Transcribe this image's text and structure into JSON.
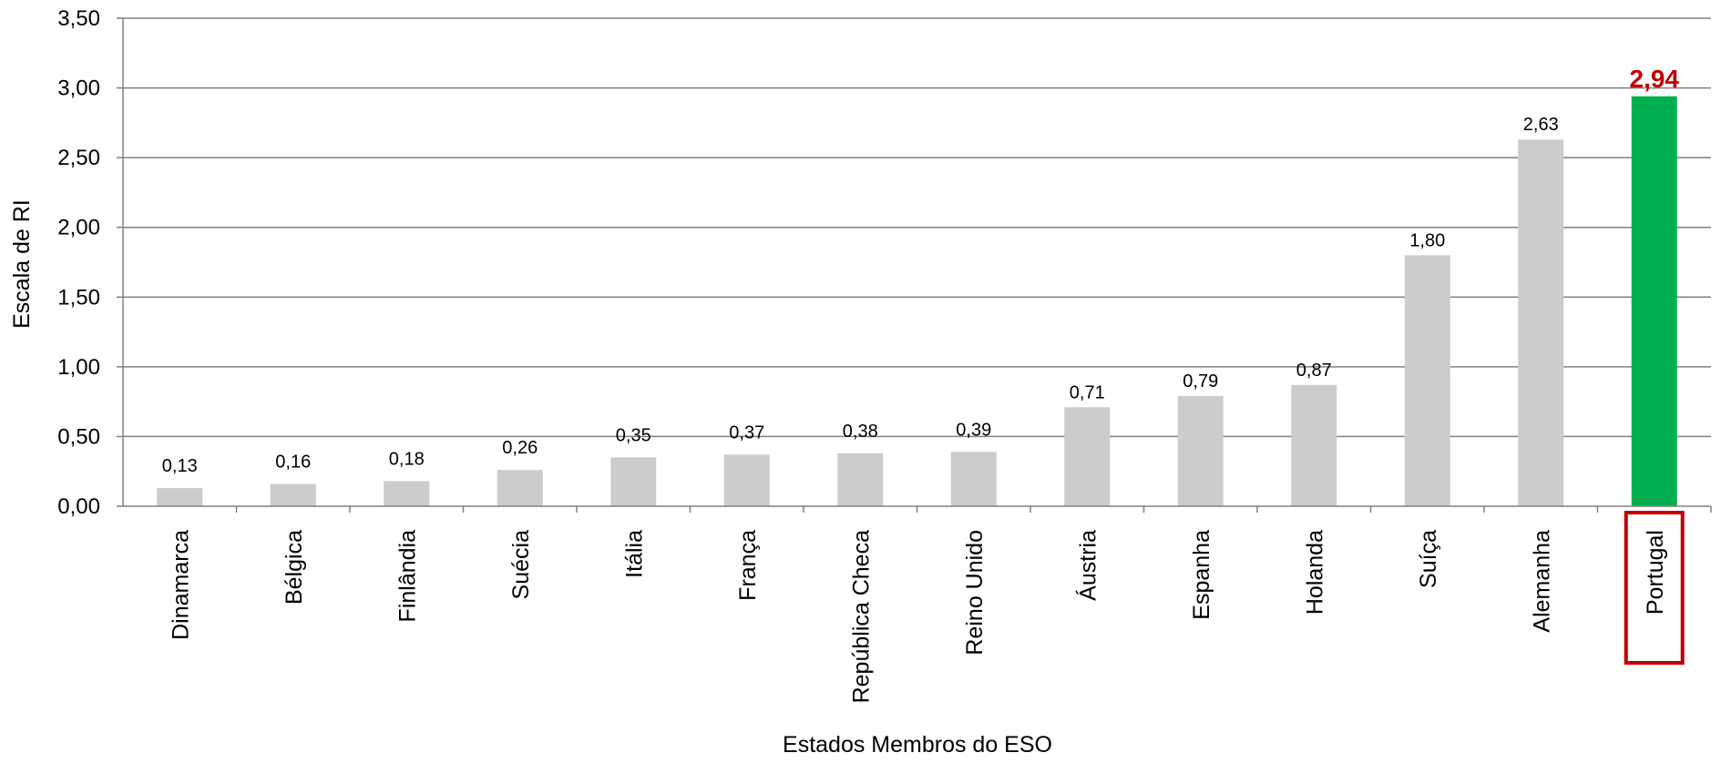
{
  "chart_data": {
    "type": "bar",
    "title": "",
    "xlabel": "Estados Membros do ESO",
    "ylabel": "Escala de RI",
    "ylim": [
      0,
      3.5
    ],
    "yticks": [
      "0,00",
      "0,50",
      "1,00",
      "1,50",
      "2,00",
      "2,50",
      "3,00",
      "3,50"
    ],
    "grid": true,
    "categories": [
      "Dinamarca",
      "Bélgica",
      "Finlândia",
      "Suécia",
      "Itália",
      "França",
      "República Checa",
      "Reino Unido",
      "Áustria",
      "Espanha",
      "Holanda",
      "Suíça",
      "Alemanha",
      "Portugal"
    ],
    "values": [
      0.13,
      0.16,
      0.18,
      0.26,
      0.35,
      0.37,
      0.38,
      0.39,
      0.71,
      0.79,
      0.87,
      1.8,
      2.63,
      2.94
    ],
    "value_labels": [
      "0,13",
      "0,16",
      "0,18",
      "0,26",
      "0,35",
      "0,37",
      "0,38",
      "0,39",
      "0,71",
      "0,79",
      "0,87",
      "1,80",
      "2,63",
      "2,94"
    ],
    "highlight": "Portugal",
    "colors": {
      "bar": "#cccccc",
      "highlight_bar": "#00b050",
      "highlight_label": "#c00000",
      "highlight_box": "#c00000",
      "grid": "#808080",
      "text": "#000000"
    }
  }
}
